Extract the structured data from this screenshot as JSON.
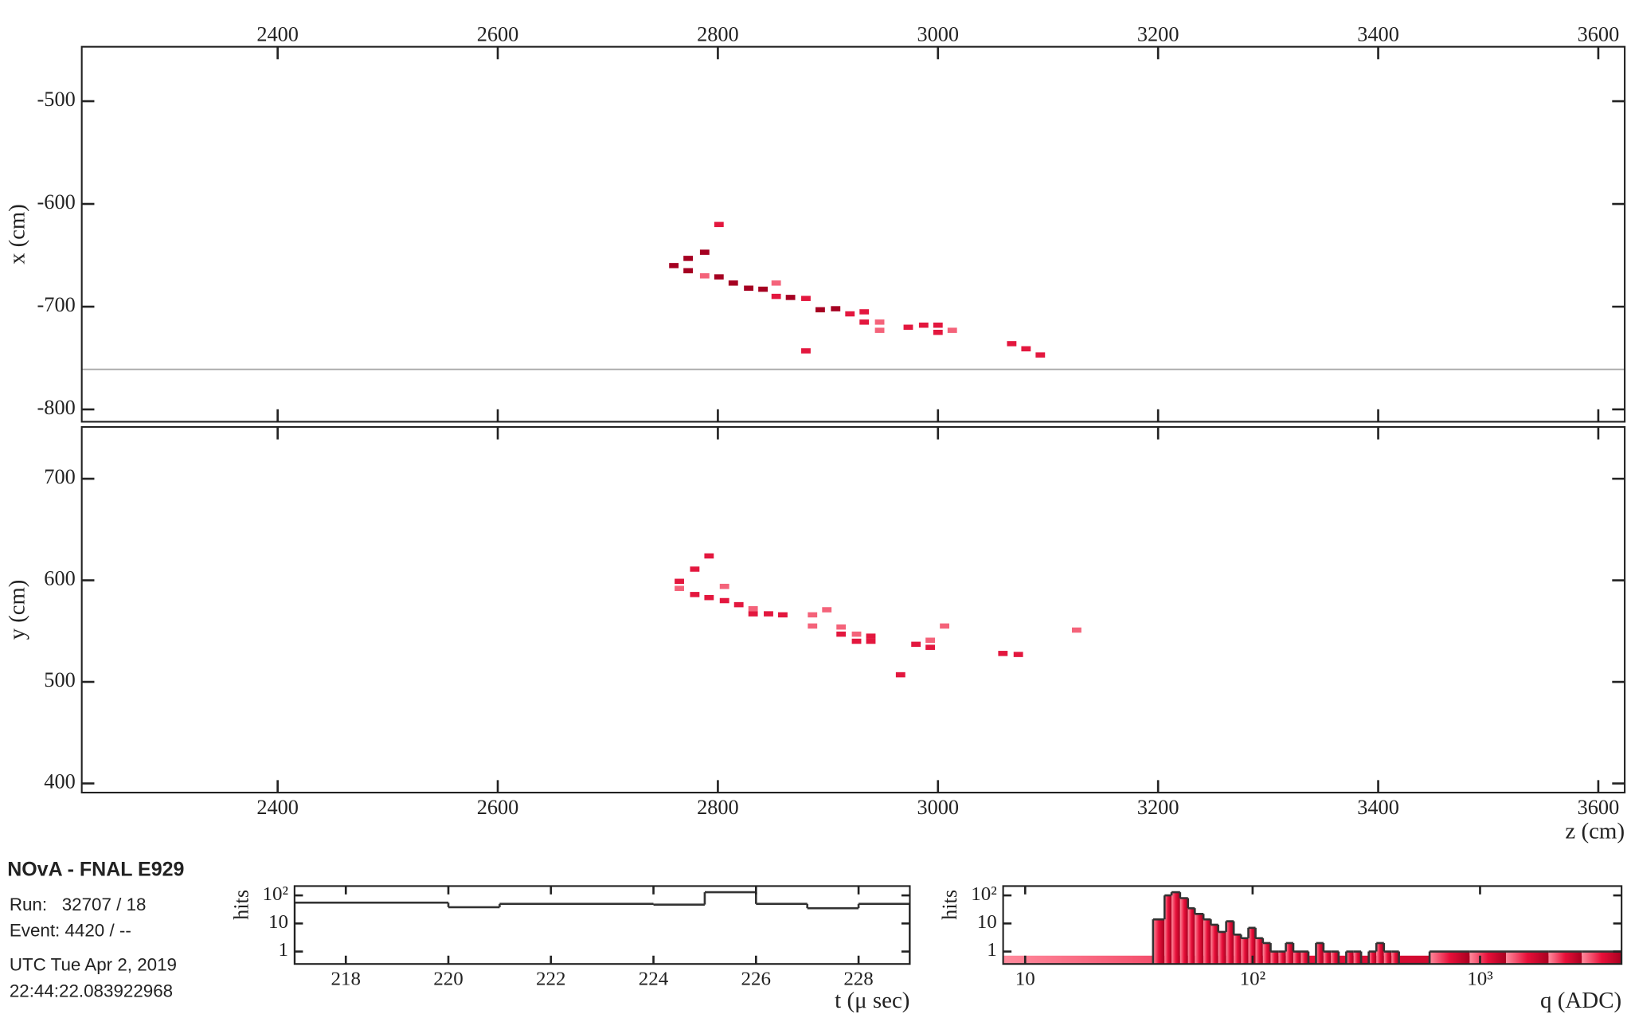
{
  "info": {
    "title": "NOvA - FNAL E929",
    "run": "Run:   32707 / 18",
    "event": "Event: 4420 / --",
    "date": "UTC Tue Apr 2, 2019",
    "time": "22:44:22.083922968"
  },
  "chart_data": [
    {
      "type": "scatter",
      "ylabel": "x (cm)",
      "xaxis_labels": "top",
      "xlim": [
        2222,
        3624
      ],
      "ylim": [
        -812,
        -447
      ],
      "xticks": [
        2400,
        2600,
        2800,
        3000,
        3200,
        3400,
        3600
      ],
      "yticks": [
        -500,
        -600,
        -700,
        -800
      ],
      "hlines": [
        -761
      ],
      "hline_color": "#a8a8a8",
      "series": [
        {
          "color": "#a50021",
          "x": [
            2760,
            2773,
            2773,
            2788,
            2801,
            2814,
            2828,
            2841,
            2866,
            2893,
            2907
          ],
          "values": [
            -660,
            -653,
            -665,
            -647,
            -671,
            -677,
            -682,
            -683,
            -691,
            -703,
            -702
          ]
        },
        {
          "color": "#e3173e",
          "x": [
            2801,
            2853,
            2880,
            2880,
            2920,
            2933,
            2933,
            2973,
            2987,
            3000,
            3000,
            3067,
            3080,
            3093
          ],
          "values": [
            -620,
            -690,
            -692,
            -743,
            -707,
            -705,
            -715,
            -720,
            -718,
            -718,
            -725,
            -736,
            -741,
            -747
          ]
        },
        {
          "color": "#f4637a",
          "x": [
            2788,
            2853,
            2947,
            2947,
            3013
          ],
          "values": [
            -670,
            -677,
            -715,
            -723,
            -723
          ]
        }
      ]
    },
    {
      "type": "scatter",
      "ylabel": "y (cm)",
      "xlabel": "z (cm)",
      "xaxis_labels": "bottom",
      "xlim": [
        2222,
        3624
      ],
      "ylim": [
        391,
        751
      ],
      "xticks": [
        2400,
        2600,
        2800,
        3000,
        3200,
        3400,
        3600
      ],
      "yticks": [
        700,
        600,
        500,
        400
      ],
      "series": [
        {
          "color": "#e3173e",
          "x": [
            2765,
            2779,
            2779,
            2792,
            2792,
            2806,
            2819,
            2832,
            2846,
            2859,
            2912,
            2926,
            2939,
            2939,
            2966,
            2980,
            2993,
            3059,
            3073
          ],
          "values": [
            599,
            611,
            586,
            624,
            583,
            580,
            576,
            567,
            567,
            566,
            547,
            540,
            545,
            540,
            507,
            537,
            534,
            528,
            527
          ]
        },
        {
          "color": "#f4637a",
          "x": [
            2765,
            2806,
            2832,
            2886,
            2886,
            2899,
            2912,
            2926,
            2993,
            3006,
            3126
          ],
          "values": [
            592,
            594,
            572,
            566,
            555,
            571,
            554,
            547,
            541,
            555,
            551
          ]
        }
      ]
    },
    {
      "type": "histogram",
      "xlabel": "t (μ sec)",
      "ylabel": "hits",
      "ylog": true,
      "xlim": [
        217,
        229
      ],
      "ylim": [
        0.36,
        215
      ],
      "xticks": [
        218,
        220,
        222,
        224,
        226,
        228
      ],
      "yticks": [
        1,
        10,
        {
          "value": 100,
          "label": "10²"
        }
      ],
      "bins": [
        217,
        220,
        221,
        224,
        225,
        226,
        227,
        228,
        229
      ],
      "values": [
        55,
        38,
        50,
        47,
        130,
        50,
        35,
        50
      ]
    },
    {
      "type": "histogram",
      "xlabel": "q (ADC)",
      "ylabel": "hits",
      "xlog": true,
      "ylog": true,
      "xlim": [
        8,
        4190
      ],
      "ylim": [
        0.36,
        215
      ],
      "xticks": [
        10,
        {
          "value": 100,
          "label": "10²"
        },
        {
          "value": 1000,
          "label": "10³"
        }
      ],
      "yticks": [
        1,
        10,
        {
          "value": 100,
          "label": "10²"
        }
      ],
      "fill_gradient": [
        "#ff8a9c",
        "#e8103a",
        "#a80020"
      ],
      "bins": [
        36.5,
        41,
        44,
        48,
        52,
        55.7,
        60.8,
        65.5,
        70.6,
        76.5,
        82.6,
        89,
        95.8,
        103,
        111,
        120,
        130,
        140,
        151,
        163,
        176,
        190,
        205,
        221,
        239,
        258,
        278,
        300,
        324,
        350,
        378,
        408,
        440,
        600,
        900,
        1300,
        2000,
        2800,
        4190
      ],
      "values": [
        14,
        100,
        130,
        80,
        35,
        22,
        14,
        9,
        5,
        12,
        4,
        3,
        7,
        3,
        2,
        1,
        1,
        2,
        1,
        1,
        0,
        2,
        1,
        1,
        0,
        1,
        1,
        0,
        1,
        2,
        1,
        1,
        0,
        1,
        1,
        1,
        1,
        1
      ]
    }
  ]
}
